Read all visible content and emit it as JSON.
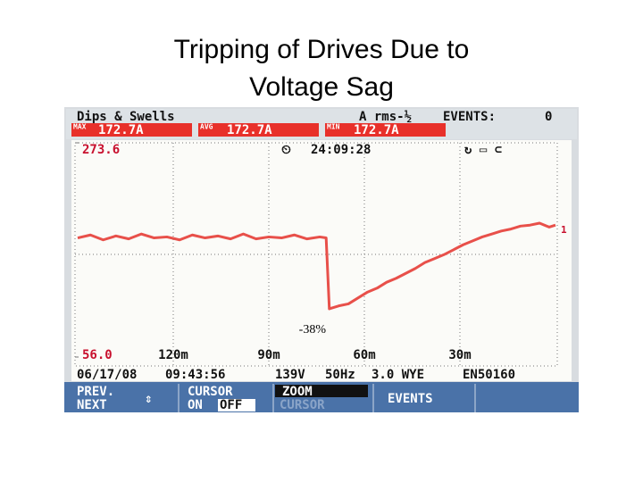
{
  "slide_title": [
    "Tripping of Drives Due to",
    "Voltage Sag"
  ],
  "header": {
    "mode": "Dips & Swells",
    "measure": "A rms-½",
    "events_label": "EVENTS:",
    "events_count": "0",
    "max_label": "MAX",
    "max_value": "172.7A",
    "avg_label": "AVG",
    "avg_value": "172.7A",
    "min_label": "MIN",
    "min_value": "172.7A",
    "time": "24:09:28"
  },
  "chart_data": {
    "type": "line",
    "x": [
      150,
      146,
      142,
      138,
      134,
      130,
      126,
      122,
      118,
      114,
      110,
      106,
      102,
      98,
      94,
      90,
      86,
      82,
      78,
      74,
      72,
      71,
      68,
      65,
      62,
      59,
      56,
      53,
      50,
      47,
      44,
      41,
      38,
      35,
      32,
      29,
      26,
      23,
      20,
      17,
      14,
      11,
      8,
      5,
      2,
      0
    ],
    "series": [
      {
        "name": "1",
        "color": "#e8504a",
        "values": [
          177,
          180,
          175,
          179,
          176,
          181,
          177,
          178,
          175,
          180,
          177,
          179,
          176,
          181,
          176,
          178,
          177,
          180,
          176,
          178,
          177,
          105,
          108,
          110,
          116,
          122,
          126,
          132,
          136,
          141,
          146,
          152,
          156,
          160,
          165,
          170,
          174,
          178,
          181,
          184,
          186,
          189,
          190,
          192,
          188,
          190
        ]
      }
    ],
    "xlim": [
      150,
      0
    ],
    "xticks": [
      {
        "value": 120,
        "label": "120m"
      },
      {
        "value": 90,
        "label": "90m"
      },
      {
        "value": 60,
        "label": "60m"
      },
      {
        "value": 30,
        "label": "30m"
      }
    ],
    "ylim": [
      56,
      273.6
    ],
    "yticks": [
      {
        "value": 56,
        "label": "56.0"
      },
      273.6
    ],
    "annotation": "-38%",
    "grid": true
  },
  "footer": {
    "date": "06/17/08",
    "start": "09:43:56",
    "voltage": "139V",
    "frequency": "50Hz",
    "config": "3.0 WYE",
    "standard": "EN50160"
  },
  "softkeys": [
    [
      "PREV.",
      "NEXT"
    ],
    [
      "CURSOR",
      "ON",
      "OFF"
    ],
    [
      "ZOOM",
      "CURSOR"
    ],
    [
      "EVENTS"
    ]
  ]
}
